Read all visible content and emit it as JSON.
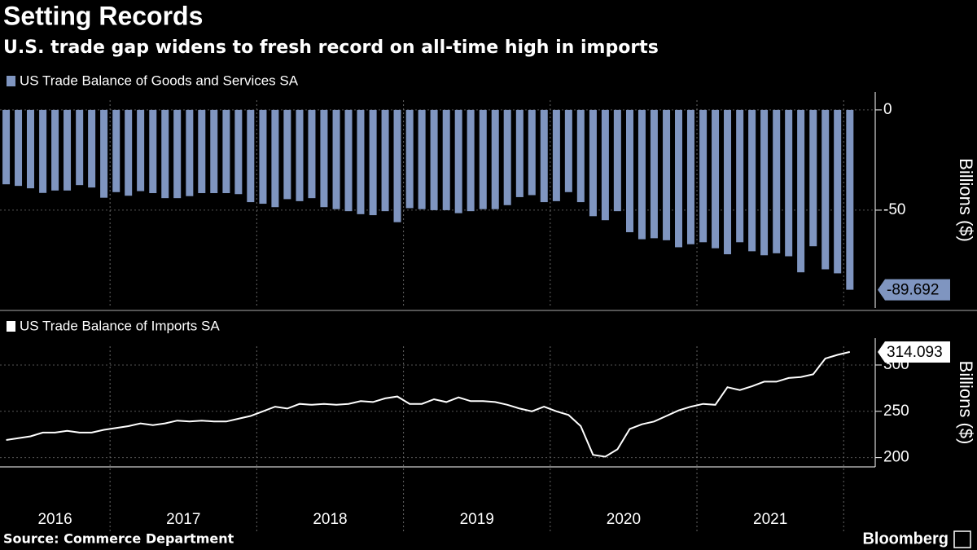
{
  "chart_data": [
    {
      "type": "bar",
      "title": "Setting Records",
      "subtitle": "U.S. trade gap widens to fresh record on all-time high in imports",
      "y_label": "Billions ($)",
      "legend": "top-left",
      "x": [
        2016.292,
        2016.375,
        2016.458,
        2016.542,
        2016.625,
        2016.708,
        2016.792,
        2016.875,
        2016.958,
        2017.042,
        2017.125,
        2017.208,
        2017.292,
        2017.375,
        2017.458,
        2017.542,
        2017.625,
        2017.708,
        2017.792,
        2017.875,
        2017.958,
        2018.042,
        2018.125,
        2018.208,
        2018.292,
        2018.375,
        2018.458,
        2018.542,
        2018.625,
        2018.708,
        2018.792,
        2018.875,
        2018.958,
        2019.042,
        2019.125,
        2019.208,
        2019.292,
        2019.375,
        2019.458,
        2019.542,
        2019.625,
        2019.708,
        2019.792,
        2019.875,
        2019.958,
        2020.042,
        2020.125,
        2020.208,
        2020.292,
        2020.375,
        2020.458,
        2020.542,
        2020.625,
        2020.708,
        2020.792,
        2020.875,
        2020.958,
        2021.042,
        2021.125,
        2021.208,
        2021.292,
        2021.375,
        2021.458,
        2021.542,
        2021.625,
        2021.708,
        2021.792,
        2021.875,
        2021.958,
        2022.042
      ],
      "series": [
        {
          "name": "US Trade Balance of Goods and Services SA",
          "color": "#7f95c0",
          "values": [
            -37.1,
            -37.9,
            -39.1,
            -41.4,
            -40.2,
            -40.2,
            -37.5,
            -38.7,
            -43.8,
            -41.0,
            -42.8,
            -40.5,
            -41.5,
            -44.0,
            -44.0,
            -43.0,
            -41.5,
            -41.5,
            -41.5,
            -42.0,
            -46.0,
            -46.8,
            -48.5,
            -44.5,
            -45.5,
            -44.0,
            -48.5,
            -49.5,
            -50.5,
            -52.0,
            -52.5,
            -50.5,
            -56.0,
            -49.0,
            -49.5,
            -50.0,
            -50.0,
            -51.5,
            -50.5,
            -49.5,
            -49.5,
            -47.5,
            -43.5,
            -42.5,
            -46.0,
            -45.5,
            -41.0,
            -46.0,
            -53.0,
            -55.0,
            -50.5,
            -61.0,
            -64.5,
            -64.0,
            -65.0,
            -68.5,
            -67.0,
            -66.0,
            -69.0,
            -72.0,
            -66.0,
            -70.5,
            -72.5,
            -71.5,
            -73.0,
            -81.0,
            -68.0,
            -79.5,
            -81.5,
            -89.692
          ]
        }
      ],
      "xlim": [
        2016.25,
        2022.215
      ],
      "xgrid": [
        2017,
        2018,
        2019,
        2020,
        2021,
        2022
      ],
      "ylim": [
        -98.8,
        8.9
      ],
      "yticks": [
        0,
        -50
      ],
      "grid": true
    },
    {
      "type": "line",
      "y_label": "Billions ($)",
      "legend": "top-left",
      "x": [
        2016.292,
        2016.375,
        2016.458,
        2016.542,
        2016.625,
        2016.708,
        2016.792,
        2016.875,
        2016.958,
        2017.042,
        2017.125,
        2017.208,
        2017.292,
        2017.375,
        2017.458,
        2017.542,
        2017.625,
        2017.708,
        2017.792,
        2017.875,
        2017.958,
        2018.042,
        2018.125,
        2018.208,
        2018.292,
        2018.375,
        2018.458,
        2018.542,
        2018.625,
        2018.708,
        2018.792,
        2018.875,
        2018.958,
        2019.042,
        2019.125,
        2019.208,
        2019.292,
        2019.375,
        2019.458,
        2019.542,
        2019.625,
        2019.708,
        2019.792,
        2019.875,
        2019.958,
        2020.042,
        2020.125,
        2020.208,
        2020.292,
        2020.375,
        2020.458,
        2020.542,
        2020.625,
        2020.708,
        2020.792,
        2020.875,
        2020.958,
        2021.042,
        2021.125,
        2021.208,
        2021.292,
        2021.375,
        2021.458,
        2021.542,
        2021.625,
        2021.708,
        2021.792,
        2021.875,
        2021.958,
        2022.042
      ],
      "series": [
        {
          "name": "US Trade Balance of Imports SA",
          "color": "#ffffff",
          "values": [
            219,
            221,
            223,
            227,
            227,
            229,
            227,
            227,
            230,
            232,
            234,
            237,
            235,
            237,
            240,
            239,
            240,
            239,
            239,
            242,
            245,
            250,
            255,
            253,
            258,
            257,
            258,
            257,
            258,
            261,
            260,
            264,
            266,
            258,
            258,
            263,
            260,
            265,
            261,
            261,
            260,
            257,
            253,
            250,
            255,
            250,
            246,
            234,
            203,
            201,
            209,
            231,
            236,
            239,
            245,
            251,
            255,
            258,
            257,
            276,
            273,
            277,
            282,
            282,
            286,
            287,
            290,
            307,
            311,
            314.093
          ]
        }
      ],
      "xlim": [
        2016.25,
        2022.215
      ],
      "xgrid": [
        2017,
        2018,
        2019,
        2020,
        2021,
        2022
      ],
      "xticks": [
        {
          "value": 2016.5,
          "label": "2016"
        },
        {
          "value": 2017.5,
          "label": "2017"
        },
        {
          "value": 2018.5,
          "label": "2018"
        },
        {
          "value": 2019.5,
          "label": "2019"
        },
        {
          "value": 2020.5,
          "label": "2020"
        },
        {
          "value": 2021.5,
          "label": "2021"
        }
      ],
      "ylim": [
        190,
        329
      ],
      "yticks": [
        200,
        250,
        300
      ],
      "grid": true
    }
  ],
  "footer": {
    "source": "Source: Commerce Department",
    "brand": "Bloomberg"
  }
}
